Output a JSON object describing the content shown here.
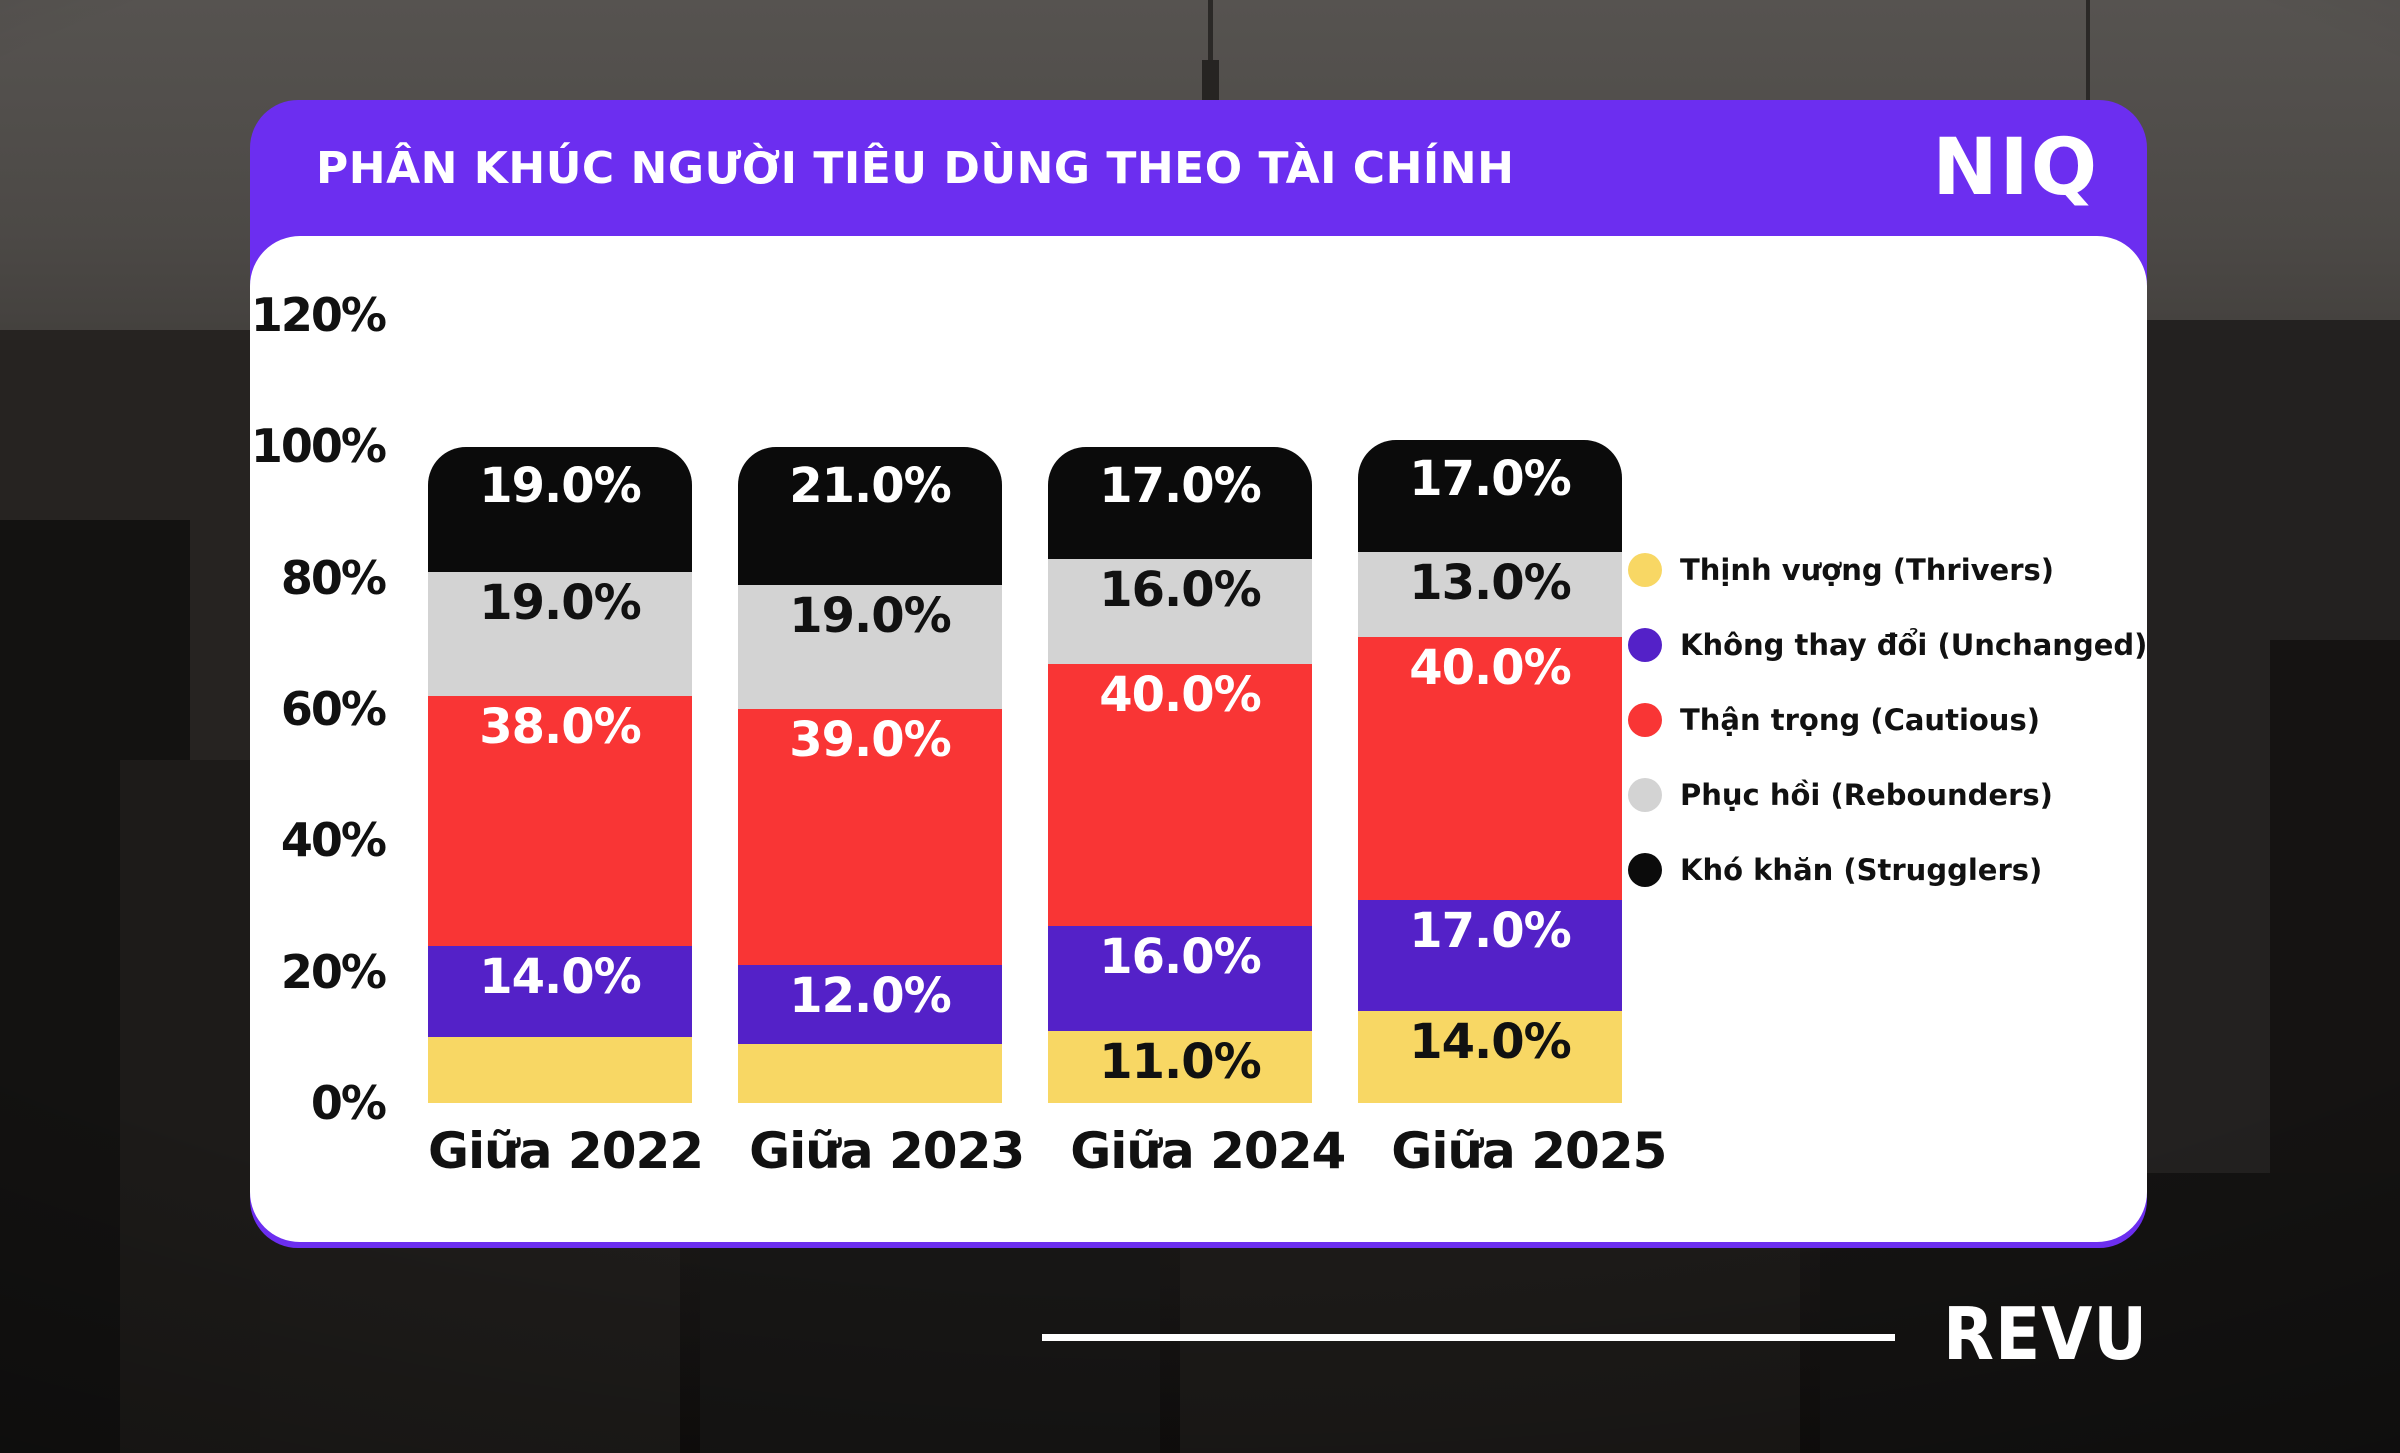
{
  "header": {
    "title": "PHÂN KHÚC NGƯỜI TIÊU DÙNG THEO TÀI CHÍNH",
    "brand": "NIQ"
  },
  "footer": {
    "brand": "REVU"
  },
  "colors": {
    "header_bg": "#6C2EF0",
    "card_bg": "#FFFFFF",
    "thrivers_yellow": "#F8D764",
    "unchanged_purple": "#5421C8",
    "cautious_red": "#F93535",
    "rebounders_gray": "#D3D3D3",
    "strugglers_black": "#0B0B0B"
  },
  "chart_data": {
    "type": "bar",
    "stacked": true,
    "grid": false,
    "legend_position": "right",
    "title": "PHÂN KHÚC NGƯỜI TIÊU DÙNG THEO TÀI CHÍNH",
    "categories": [
      "Giữa 2022",
      "Giữa 2023",
      "Giữa 2024",
      "Giữa 2025"
    ],
    "ylim": [
      0,
      120
    ],
    "yticks": [
      "120%",
      "100%",
      "80%",
      "60%",
      "40%",
      "20%",
      "0%"
    ],
    "series": [
      {
        "name": "Thịnh vượng (Thrivers)",
        "color": "#F8D764",
        "label_color": "#111111",
        "values": [
          10,
          9,
          11,
          14
        ],
        "labels": [
          null,
          null,
          "11.0%",
          "14.0%"
        ]
      },
      {
        "name": "Không thay đổi (Unchanged)",
        "color": "#5421C8",
        "label_color": "#FFFFFF",
        "values": [
          14,
          12,
          16,
          17
        ],
        "labels": [
          "14.0%",
          "12.0%",
          "16.0%",
          "17.0%"
        ]
      },
      {
        "name": "Thận trọng (Cautious)",
        "color": "#F93535",
        "label_color": "#FFFFFF",
        "values": [
          38,
          39,
          40,
          40
        ],
        "labels": [
          "38.0%",
          "39.0%",
          "40.0%",
          "40.0%"
        ]
      },
      {
        "name": "Phục hồi (Rebounders)",
        "color": "#D3D3D3",
        "label_color": "#111111",
        "values": [
          19,
          19,
          16,
          13
        ],
        "labels": [
          "19.0%",
          "19.0%",
          "16.0%",
          "13.0%"
        ]
      },
      {
        "name": "Khó khăn (Strugglers)",
        "color": "#0B0B0B",
        "label_color": "#FFFFFF",
        "values": [
          19,
          21,
          17,
          17
        ],
        "labels": [
          "19.0%",
          "21.0%",
          "17.0%",
          "17.0%"
        ]
      }
    ]
  }
}
